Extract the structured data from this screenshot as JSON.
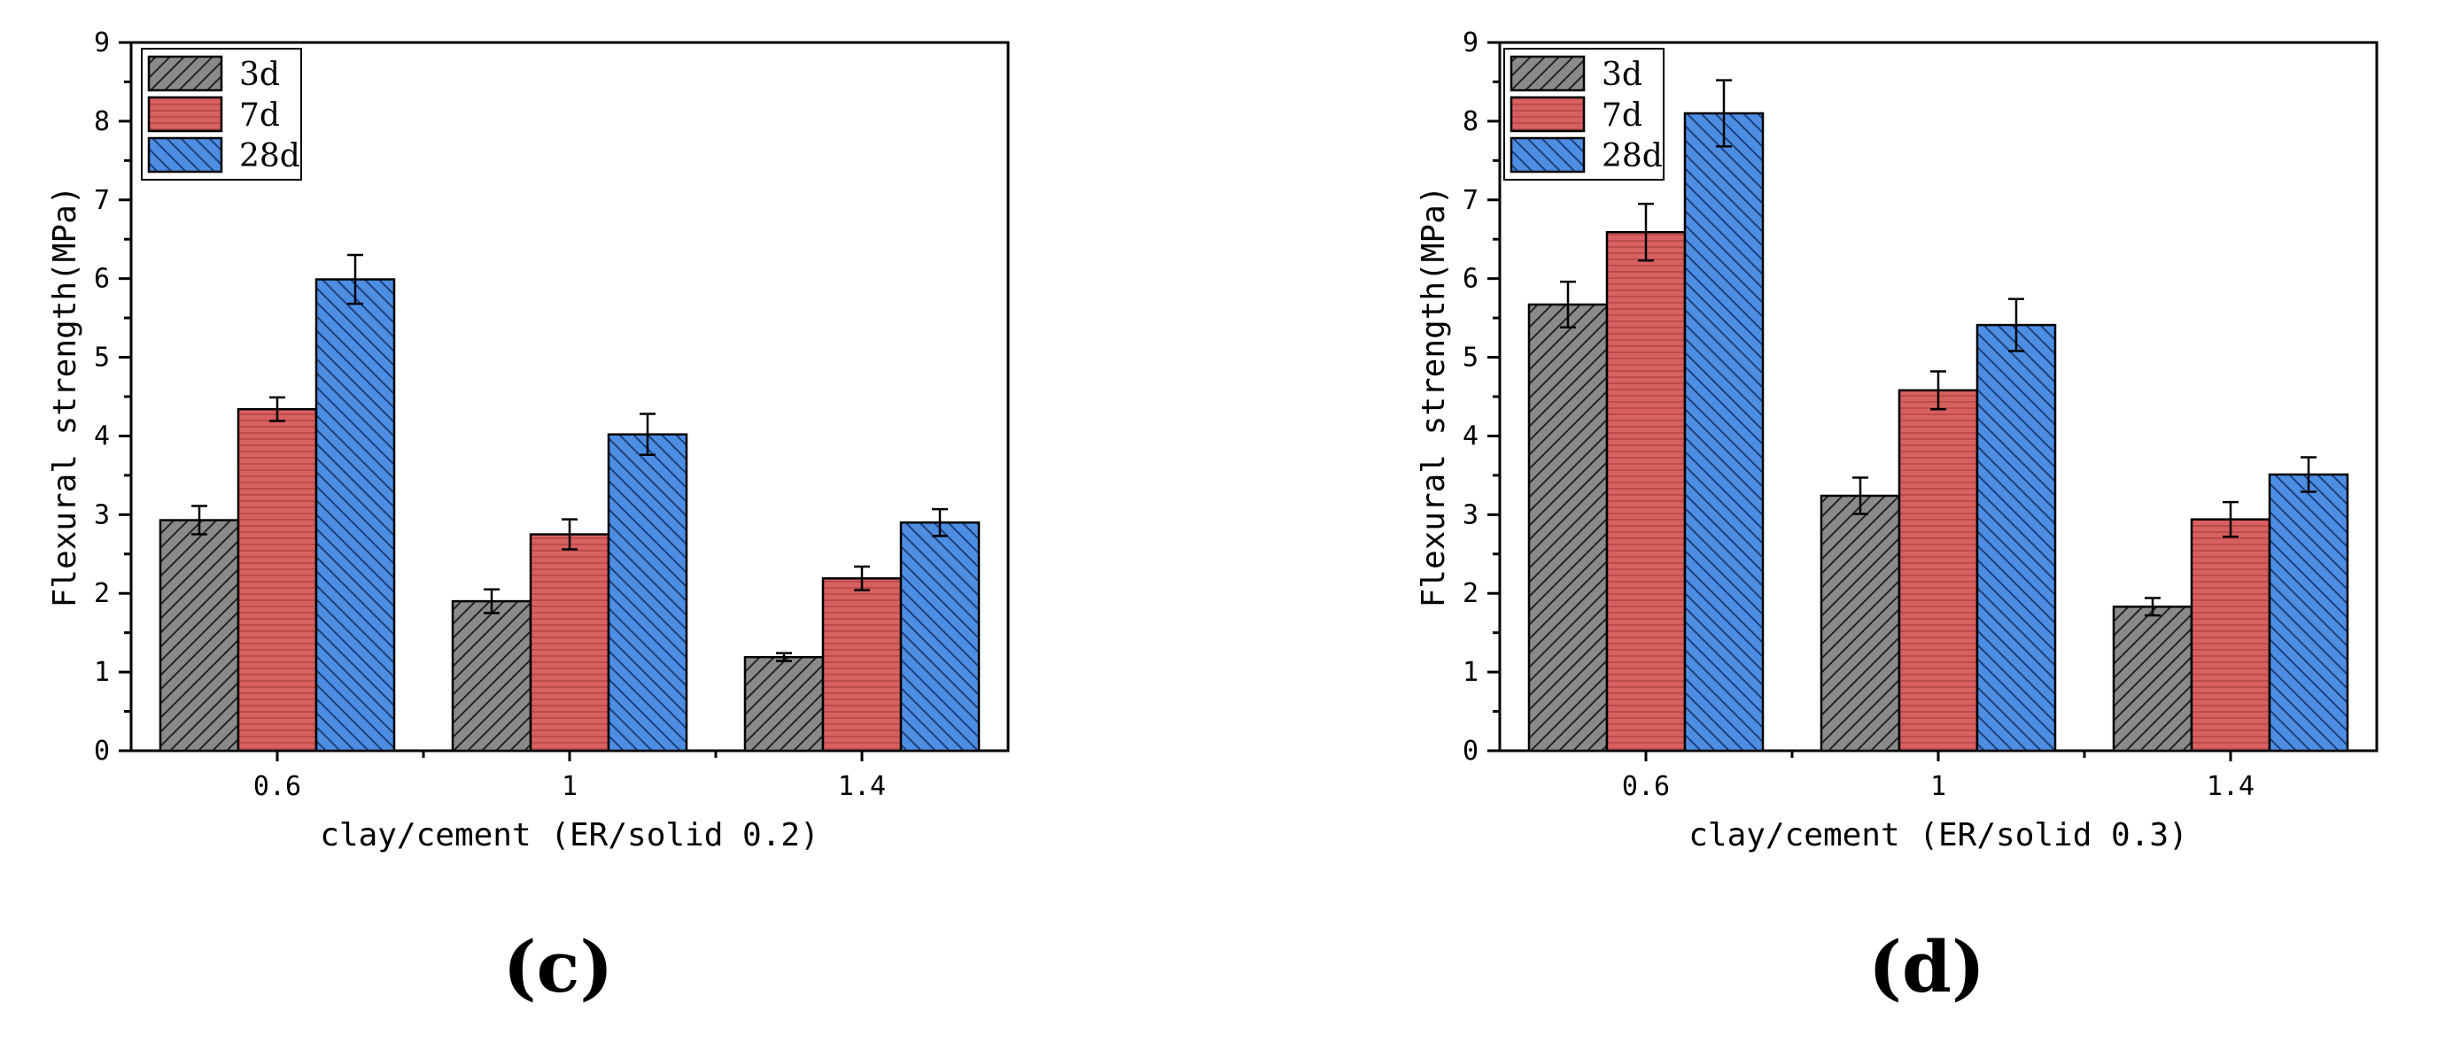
{
  "chart_data": [
    {
      "type": "bar",
      "panel_label": "(c)",
      "categories": [
        "0.6",
        "1",
        "1.4"
      ],
      "series": [
        {
          "name": "3d",
          "values": [
            2.93,
            1.9,
            1.19
          ],
          "errors": [
            0.18,
            0.15,
            0.05
          ]
        },
        {
          "name": "7d",
          "values": [
            4.34,
            2.75,
            2.19
          ],
          "errors": [
            0.15,
            0.19,
            0.15
          ]
        },
        {
          "name": "28d",
          "values": [
            5.99,
            4.02,
            2.9
          ],
          "errors": [
            0.31,
            0.26,
            0.17
          ]
        }
      ],
      "xlabel": "clay/cement (ER/solid 0.2)",
      "ylabel": "Flexural strength(MPa)",
      "ylim": [
        0,
        9
      ],
      "yticks": [
        "0",
        "1",
        "2",
        "3",
        "4",
        "5",
        "6",
        "7",
        "8",
        "9"
      ],
      "legend_position": "top-left"
    },
    {
      "type": "bar",
      "panel_label": "(d)",
      "categories": [
        "0.6",
        "1",
        "1.4"
      ],
      "series": [
        {
          "name": "3d",
          "values": [
            5.67,
            3.24,
            1.83
          ],
          "errors": [
            0.29,
            0.23,
            0.11
          ]
        },
        {
          "name": "7d",
          "values": [
            6.59,
            4.58,
            2.94
          ],
          "errors": [
            0.36,
            0.24,
            0.22
          ]
        },
        {
          "name": "28d",
          "values": [
            8.1,
            5.41,
            3.51
          ],
          "errors": [
            0.42,
            0.33,
            0.22
          ]
        }
      ],
      "xlabel": "clay/cement (ER/solid 0.3)",
      "ylabel": "Flexural strength(MPa)",
      "ylim": [
        0,
        9
      ],
      "yticks": [
        "0",
        "1",
        "2",
        "3",
        "4",
        "5",
        "6",
        "7",
        "8",
        "9"
      ],
      "legend_position": "top-left"
    }
  ],
  "colors": {
    "3d": "#8a8a8a",
    "7d": "#d96060",
    "28d": "#4d8ee3"
  }
}
